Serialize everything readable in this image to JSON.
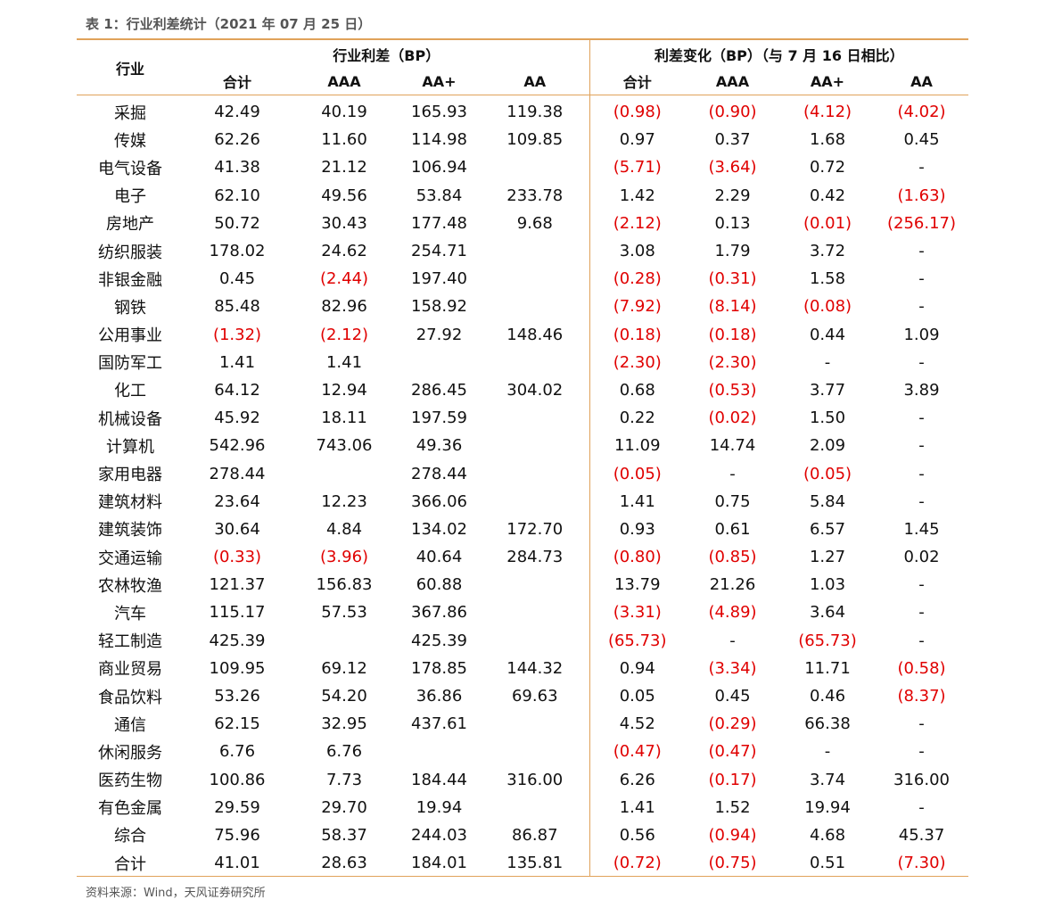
{
  "caption": "表 1：行业利差统计（2021 年 07 月 25 日）",
  "headers": {
    "industry": "行业",
    "group1": "行业利差（BP）",
    "group2": "利差变化（BP）（与 7 月 16 日相比）",
    "sub": [
      "合计",
      "AAA",
      "AA+",
      "AA",
      "合计",
      "AAA",
      "AA+",
      "AA"
    ]
  },
  "rows": [
    [
      "采掘",
      "42.49",
      "40.19",
      "165.93",
      "119.38",
      "(0.98)",
      "(0.90)",
      "(4.12)",
      "(4.02)"
    ],
    [
      "传媒",
      "62.26",
      "11.60",
      "114.98",
      "109.85",
      "0.97",
      "0.37",
      "1.68",
      "0.45"
    ],
    [
      "电气设备",
      "41.38",
      "21.12",
      "106.94",
      "",
      "(5.71)",
      "(3.64)",
      "0.72",
      "-"
    ],
    [
      "电子",
      "62.10",
      "49.56",
      "53.84",
      "233.78",
      "1.42",
      "2.29",
      "0.42",
      "(1.63)"
    ],
    [
      "房地产",
      "50.72",
      "30.43",
      "177.48",
      "9.68",
      "(2.12)",
      "0.13",
      "(0.01)",
      "(256.17)"
    ],
    [
      "纺织服装",
      "178.02",
      "24.62",
      "254.71",
      "",
      "3.08",
      "1.79",
      "3.72",
      "-"
    ],
    [
      "非银金融",
      "0.45",
      "(2.44)",
      "197.40",
      "",
      "(0.28)",
      "(0.31)",
      "1.58",
      "-"
    ],
    [
      "钢铁",
      "85.48",
      "82.96",
      "158.92",
      "",
      "(7.92)",
      "(8.14)",
      "(0.08)",
      "-"
    ],
    [
      "公用事业",
      "(1.32)",
      "(2.12)",
      "27.92",
      "148.46",
      "(0.18)",
      "(0.18)",
      "0.44",
      "1.09"
    ],
    [
      "国防军工",
      "1.41",
      "1.41",
      "",
      "",
      "(2.30)",
      "(2.30)",
      "-",
      "-"
    ],
    [
      "化工",
      "64.12",
      "12.94",
      "286.45",
      "304.02",
      "0.68",
      "(0.53)",
      "3.77",
      "3.89"
    ],
    [
      "机械设备",
      "45.92",
      "18.11",
      "197.59",
      "",
      "0.22",
      "(0.02)",
      "1.50",
      "-"
    ],
    [
      "计算机",
      "542.96",
      "743.06",
      "49.36",
      "",
      "11.09",
      "14.74",
      "2.09",
      "-"
    ],
    [
      "家用电器",
      "278.44",
      "",
      "278.44",
      "",
      "(0.05)",
      "-",
      "(0.05)",
      "-"
    ],
    [
      "建筑材料",
      "23.64",
      "12.23",
      "366.06",
      "",
      "1.41",
      "0.75",
      "5.84",
      "-"
    ],
    [
      "建筑装饰",
      "30.64",
      "4.84",
      "134.02",
      "172.70",
      "0.93",
      "0.61",
      "6.57",
      "1.45"
    ],
    [
      "交通运输",
      "(0.33)",
      "(3.96)",
      "40.64",
      "284.73",
      "(0.80)",
      "(0.85)",
      "1.27",
      "0.02"
    ],
    [
      "农林牧渔",
      "121.37",
      "156.83",
      "60.88",
      "",
      "13.79",
      "21.26",
      "1.03",
      "-"
    ],
    [
      "汽车",
      "115.17",
      "57.53",
      "367.86",
      "",
      "(3.31)",
      "(4.89)",
      "3.64",
      "-"
    ],
    [
      "轻工制造",
      "425.39",
      "",
      "425.39",
      "",
      "(65.73)",
      "-",
      "(65.73)",
      "-"
    ],
    [
      "商业贸易",
      "109.95",
      "69.12",
      "178.85",
      "144.32",
      "0.94",
      "(3.34)",
      "11.71",
      "(0.58)"
    ],
    [
      "食品饮料",
      "53.26",
      "54.20",
      "36.86",
      "69.63",
      "0.05",
      "0.45",
      "0.46",
      "(8.37)"
    ],
    [
      "通信",
      "62.15",
      "32.95",
      "437.61",
      "",
      "4.52",
      "(0.29)",
      "66.38",
      "-"
    ],
    [
      "休闲服务",
      "6.76",
      "6.76",
      "",
      "",
      "(0.47)",
      "(0.47)",
      "-",
      "-"
    ],
    [
      "医药生物",
      "100.86",
      "7.73",
      "184.44",
      "316.00",
      "6.26",
      "(0.17)",
      "3.74",
      "316.00"
    ],
    [
      "有色金属",
      "29.59",
      "29.70",
      "19.94",
      "",
      "1.41",
      "1.52",
      "19.94",
      "-"
    ],
    [
      "综合",
      "75.96",
      "58.37",
      "244.03",
      "86.87",
      "0.56",
      "(0.94)",
      "4.68",
      "45.37"
    ],
    [
      "合计",
      "41.01",
      "28.63",
      "184.01",
      "135.81",
      "(0.72)",
      "(0.75)",
      "0.51",
      "(7.30)"
    ]
  ],
  "source": "资料来源：Wind，天风证券研究所",
  "colors": {
    "negative": "#e00000",
    "rule": "#e0a25a"
  }
}
